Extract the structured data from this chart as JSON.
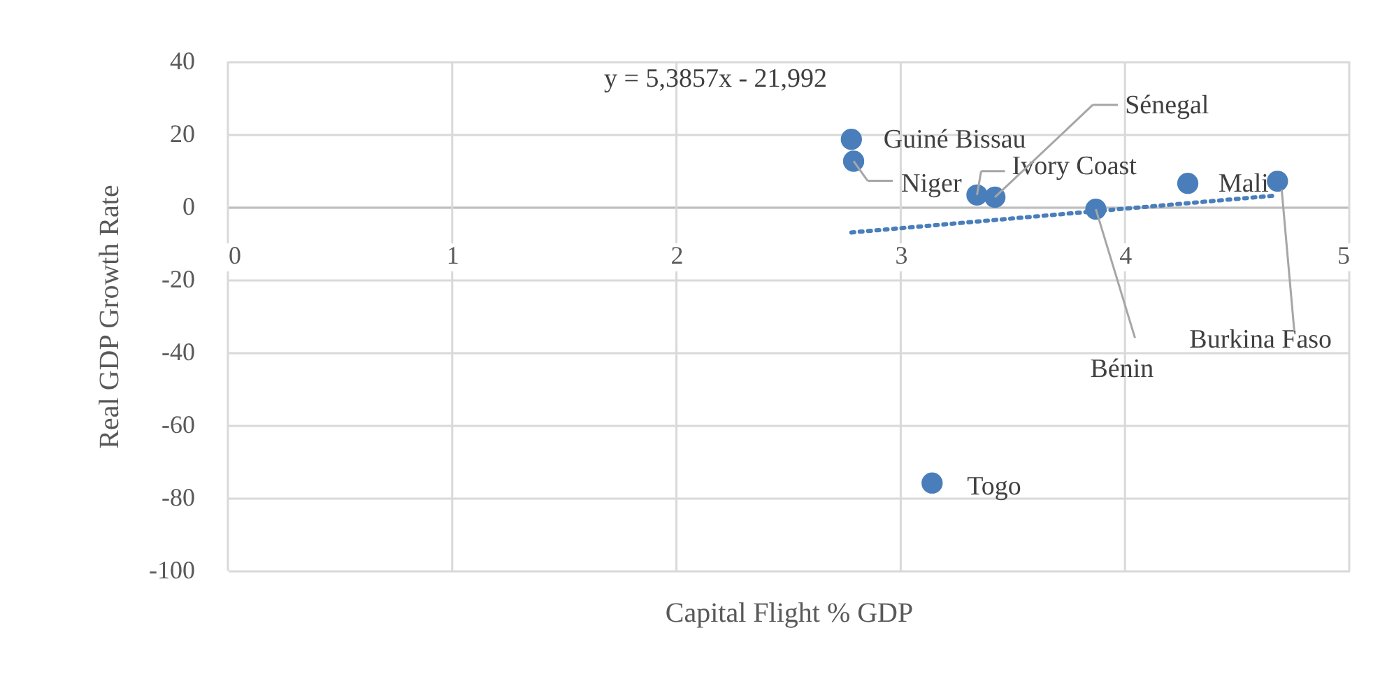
{
  "chart_data": {
    "type": "scatter",
    "xlabel": "Capital Flight % GDP",
    "ylabel": "Real GDP Growth Rate",
    "xlim": [
      0,
      5
    ],
    "xticks": [
      0,
      1,
      2,
      3,
      4,
      5
    ],
    "ylim": [
      -100,
      40
    ],
    "yticks": [
      -100,
      -80,
      -60,
      -40,
      -20,
      0,
      20,
      40
    ],
    "grid": true,
    "legend": false,
    "marker": "circle",
    "series": [
      {
        "color": "#4a7ebb",
        "x": [
          2.78,
          2.79,
          3.34,
          3.42,
          3.87,
          4.28,
          4.68,
          3.14
        ],
        "values": [
          18.6,
          12.6,
          3.3,
          2.7,
          -0.6,
          6.5,
          7.1,
          -75.9
        ]
      },
      {
        "type": "line",
        "color": "#4a7ebb",
        "line_style": "dotted",
        "marker": "none",
        "x": [
          2.78,
          4.68
        ],
        "values": [
          -7.0,
          3.2
        ]
      }
    ],
    "annotations": [
      {
        "text": "Guiné Bissau",
        "x": 2.78,
        "y": 18.6
      },
      {
        "text": "Niger",
        "x": 2.79,
        "y": 12.6
      },
      {
        "text": "Ivory Coast",
        "x": 3.34,
        "y": 3.3
      },
      {
        "text": "Sénegal",
        "x": 3.42,
        "y": 2.7
      },
      {
        "text": "Bénin",
        "x": 3.87,
        "y": -0.6
      },
      {
        "text": "Mali",
        "x": 4.28,
        "y": 6.5
      },
      {
        "text": "Burkina Faso",
        "x": 4.68,
        "y": 7.1
      },
      {
        "text": "Togo",
        "x": 3.14,
        "y": -75.9
      },
      "y = 5,3857x - 21,992"
    ]
  }
}
